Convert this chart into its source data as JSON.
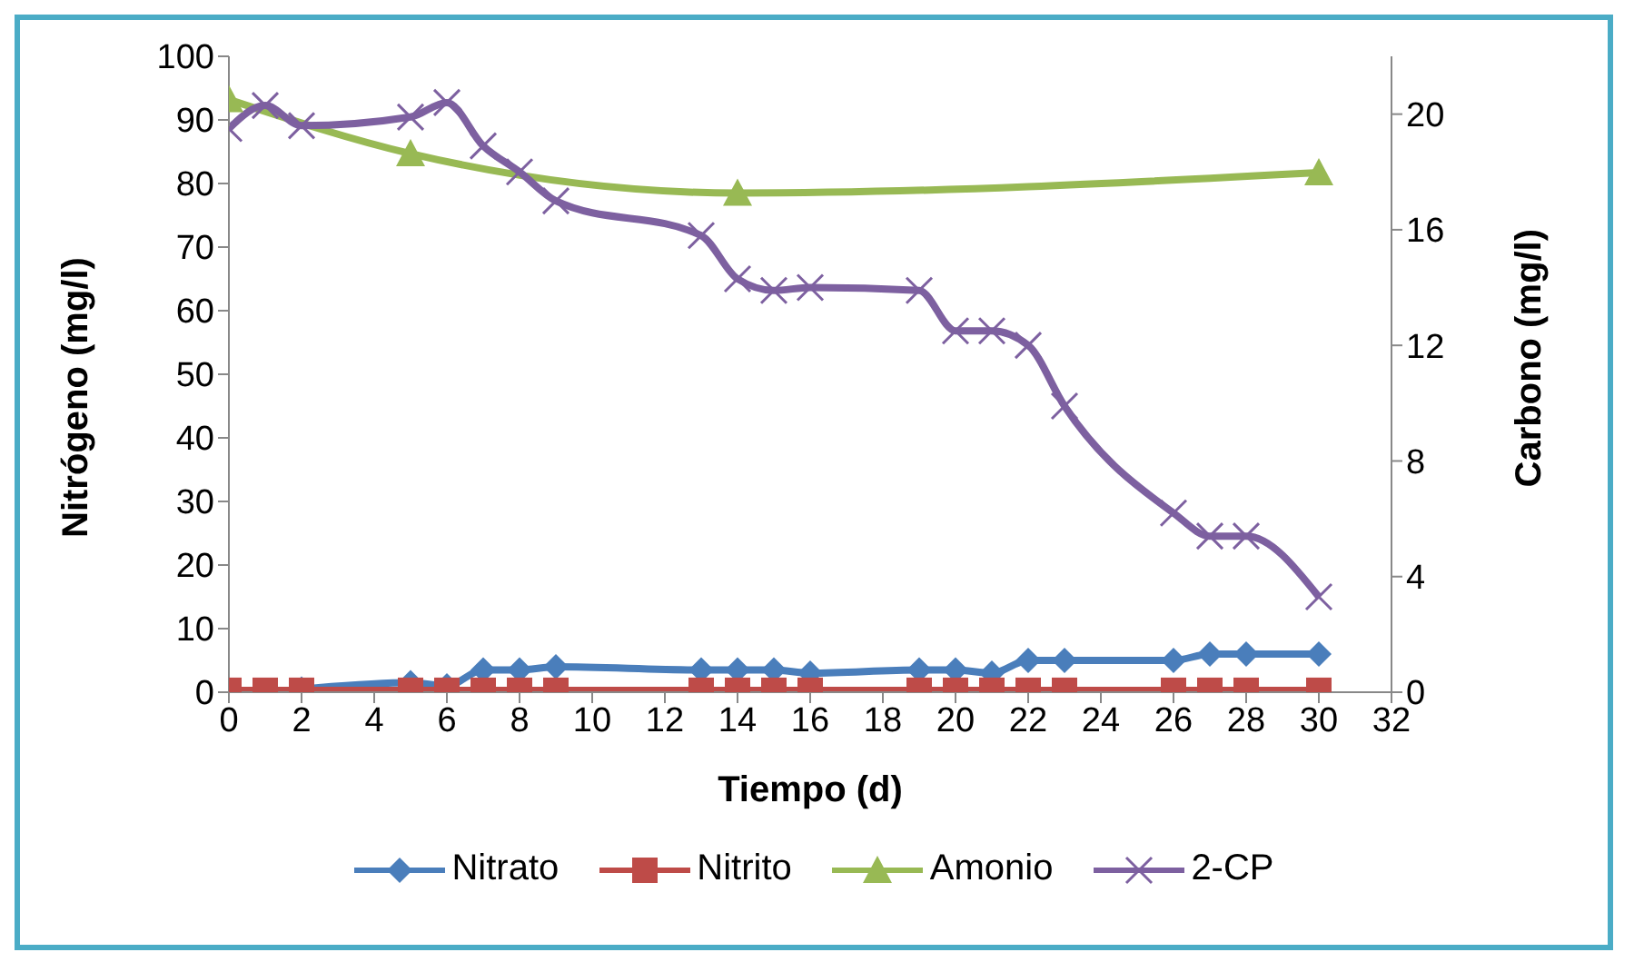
{
  "chart_data": {
    "type": "line",
    "xlabel": "Tiempo (d)",
    "ylabel": "Nitrógeno (mg/l)",
    "y2label": "Carbono (mg/l)",
    "xlim": [
      0,
      32
    ],
    "xticks": [
      0,
      2,
      4,
      6,
      8,
      10,
      12,
      14,
      16,
      18,
      20,
      22,
      24,
      26,
      28,
      30,
      32
    ],
    "ylim": [
      0,
      100
    ],
    "yticks": [
      0,
      10,
      20,
      30,
      40,
      50,
      60,
      70,
      80,
      90,
      100
    ],
    "y2lim": [
      0,
      22
    ],
    "y2ticks": [
      0,
      4,
      8,
      12,
      16,
      20
    ],
    "x": [
      0,
      1,
      2,
      5,
      6,
      7,
      8,
      9,
      13,
      14,
      15,
      16,
      19,
      20,
      21,
      22,
      23,
      26,
      27,
      28,
      30
    ],
    "legend": "bottom",
    "line_style": "solid",
    "series": [
      {
        "name": "Nitrato",
        "color": "#4a7ebb",
        "marker": "diamond",
        "values": [
          0,
          0,
          0.5,
          1.5,
          1,
          3.5,
          3.5,
          4,
          3.5,
          3.5,
          3.5,
          3,
          3.5,
          3.5,
          3,
          5,
          5,
          5,
          6,
          6,
          6
        ]
      },
      {
        "name": "Nitrito",
        "color": "#be4b48",
        "marker": "square",
        "values": [
          0.3,
          0.3,
          0.3,
          0.3,
          0.3,
          0.3,
          0.3,
          0.3,
          0.3,
          0.3,
          0.3,
          0.3,
          0.3,
          0.3,
          0.3,
          0.3,
          0.3,
          0.3,
          0.3,
          0.3,
          0.3
        ]
      },
      {
        "name": "Amonio",
        "color": "#98b954",
        "marker": "triangle",
        "x": [
          0,
          5,
          14,
          30
        ],
        "values": [
          93.2,
          84.7,
          78.5,
          81.7
        ]
      },
      {
        "name": "2-CP",
        "color": "#7d60a0",
        "marker": "cross",
        "axis": "y2",
        "values": [
          19.5,
          20.3,
          19.6,
          19.9,
          20.4,
          18.9,
          18,
          17,
          15.8,
          14.3,
          13.9,
          14,
          13.9,
          12.5,
          12.5,
          12,
          9.9,
          6.2,
          5.4,
          5.4,
          3.3
        ]
      }
    ]
  }
}
